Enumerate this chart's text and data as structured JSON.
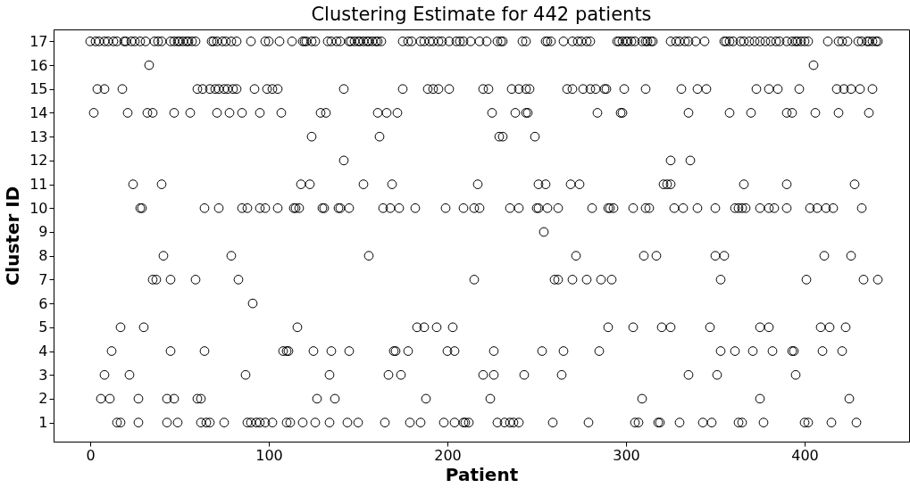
{
  "chart_data": {
    "type": "scatter",
    "title": "Clustering Estimate for 442 patients",
    "xlabel": "Patient",
    "ylabel": "Cluster ID",
    "xlim": [
      -20.5,
      458.5
    ],
    "xticks": [
      0,
      100,
      200,
      300,
      400
    ],
    "ylim": [
      0.2,
      17.5
    ],
    "yticks": [
      1,
      2,
      3,
      4,
      5,
      6,
      7,
      8,
      9,
      10,
      11,
      12,
      13,
      14,
      15,
      16,
      17
    ],
    "grid": false,
    "legend": false,
    "marker": "circle",
    "series": [
      {
        "color": "#000000",
        "x": [
          0,
          3,
          5,
          8,
          10,
          13,
          15,
          19,
          20,
          23,
          25,
          28,
          31,
          36,
          38,
          40,
          45,
          47,
          49,
          50,
          52,
          54,
          55,
          57,
          59,
          68,
          69,
          71,
          74,
          76,
          79,
          82,
          90,
          98,
          100,
          106,
          113,
          119,
          120,
          121,
          124,
          126,
          133,
          135,
          138,
          140,
          145,
          146,
          148,
          150,
          151,
          153,
          155,
          156,
          158,
          160,
          161,
          163,
          175,
          178,
          180,
          185,
          187,
          190,
          192,
          195,
          197,
          201,
          205,
          207,
          209,
          213,
          218,
          222,
          228,
          230,
          231,
          242,
          244,
          255,
          256,
          258,
          265,
          270,
          273,
          275,
          278,
          280,
          295,
          296,
          298,
          300,
          301,
          303,
          305,
          309,
          311,
          312,
          314,
          315,
          325,
          328,
          330,
          333,
          335,
          339,
          344,
          355,
          356,
          358,
          360,
          364,
          366,
          369,
          372,
          375,
          378,
          381,
          384,
          386,
          390,
          393,
          395,
          396,
          398,
          400,
          402,
          413,
          419,
          421,
          424,
          430,
          432,
          435,
          436,
          438,
          440,
          441,
          33,
          405,
          4,
          8,
          18,
          60,
          63,
          67,
          70,
          72,
          75,
          77,
          80,
          82,
          92,
          99,
          102,
          105,
          142,
          175,
          189,
          192,
          195,
          201,
          220,
          223,
          236,
          240,
          244,
          246,
          267,
          270,
          276,
          280,
          283,
          288,
          289,
          299,
          311,
          331,
          340,
          345,
          373,
          380,
          385,
          397,
          418,
          422,
          426,
          431,
          438,
          2,
          21,
          32,
          35,
          47,
          56,
          71,
          78,
          85,
          95,
          107,
          129,
          132,
          161,
          166,
          172,
          225,
          238,
          244,
          245,
          284,
          297,
          298,
          335,
          358,
          370,
          390,
          393,
          406,
          419,
          436,
          124,
          162,
          229,
          231,
          249,
          142,
          325,
          336,
          24,
          40,
          118,
          123,
          153,
          169,
          217,
          251,
          255,
          269,
          274,
          321,
          323,
          325,
          366,
          390,
          428,
          28,
          29,
          64,
          72,
          85,
          88,
          95,
          98,
          105,
          114,
          115,
          117,
          130,
          131,
          139,
          140,
          145,
          164,
          168,
          173,
          182,
          199,
          209,
          215,
          218,
          235,
          240,
          250,
          251,
          256,
          262,
          281,
          290,
          291,
          293,
          304,
          311,
          313,
          327,
          332,
          340,
          350,
          361,
          363,
          365,
          367,
          375,
          380,
          383,
          390,
          403,
          407,
          412,
          416,
          432,
          254,
          41,
          79,
          156,
          272,
          310,
          317,
          350,
          355,
          411,
          426,
          35,
          37,
          45,
          59,
          83,
          215,
          260,
          262,
          270,
          278,
          286,
          292,
          353,
          401,
          433,
          441,
          91,
          17,
          30,
          116,
          183,
          187,
          194,
          203,
          290,
          304,
          320,
          325,
          347,
          375,
          380,
          409,
          414,
          423,
          12,
          45,
          64,
          108,
          110,
          111,
          125,
          135,
          145,
          170,
          171,
          178,
          200,
          204,
          226,
          253,
          265,
          285,
          353,
          361,
          371,
          382,
          393,
          394,
          410,
          421,
          8,
          22,
          87,
          134,
          167,
          174,
          220,
          226,
          243,
          264,
          335,
          351,
          395,
          6,
          11,
          27,
          43,
          47,
          60,
          62,
          127,
          137,
          188,
          224,
          309,
          375,
          425,
          15,
          17,
          27,
          43,
          49,
          62,
          65,
          67,
          75,
          88,
          90,
          93,
          95,
          98,
          102,
          110,
          112,
          119,
          126,
          134,
          144,
          150,
          165,
          179,
          185,
          198,
          204,
          209,
          210,
          212,
          228,
          232,
          235,
          237,
          240,
          259,
          279,
          305,
          307,
          318,
          319,
          330,
          343,
          348,
          363,
          365,
          377,
          400,
          402,
          415,
          429
        ],
        "values": [
          17,
          17,
          17,
          17,
          17,
          17,
          17,
          17,
          17,
          17,
          17,
          17,
          17,
          17,
          17,
          17,
          17,
          17,
          17,
          17,
          17,
          17,
          17,
          17,
          17,
          17,
          17,
          17,
          17,
          17,
          17,
          17,
          17,
          17,
          17,
          17,
          17,
          17,
          17,
          17,
          17,
          17,
          17,
          17,
          17,
          17,
          17,
          17,
          17,
          17,
          17,
          17,
          17,
          17,
          17,
          17,
          17,
          17,
          17,
          17,
          17,
          17,
          17,
          17,
          17,
          17,
          17,
          17,
          17,
          17,
          17,
          17,
          17,
          17,
          17,
          17,
          17,
          17,
          17,
          17,
          17,
          17,
          17,
          17,
          17,
          17,
          17,
          17,
          17,
          17,
          17,
          17,
          17,
          17,
          17,
          17,
          17,
          17,
          17,
          17,
          17,
          17,
          17,
          17,
          17,
          17,
          17,
          17,
          17,
          17,
          17,
          17,
          17,
          17,
          17,
          17,
          17,
          17,
          17,
          17,
          17,
          17,
          17,
          17,
          17,
          17,
          17,
          17,
          17,
          17,
          17,
          17,
          17,
          17,
          17,
          17,
          17,
          17,
          16,
          16,
          15,
          15,
          15,
          15,
          15,
          15,
          15,
          15,
          15,
          15,
          15,
          15,
          15,
          15,
          15,
          15,
          15,
          15,
          15,
          15,
          15,
          15,
          15,
          15,
          15,
          15,
          15,
          15,
          15,
          15,
          15,
          15,
          15,
          15,
          15,
          15,
          15,
          15,
          15,
          15,
          15,
          15,
          15,
          15,
          15,
          15,
          15,
          15,
          15,
          14,
          14,
          14,
          14,
          14,
          14,
          14,
          14,
          14,
          14,
          14,
          14,
          14,
          14,
          14,
          14,
          14,
          14,
          14,
          14,
          14,
          14,
          14,
          14,
          14,
          14,
          14,
          14,
          14,
          14,
          14,
          13,
          13,
          13,
          13,
          13,
          12,
          12,
          12,
          11,
          11,
          11,
          11,
          11,
          11,
          11,
          11,
          11,
          11,
          11,
          11,
          11,
          11,
          11,
          11,
          11,
          10,
          10,
          10,
          10,
          10,
          10,
          10,
          10,
          10,
          10,
          10,
          10,
          10,
          10,
          10,
          10,
          10,
          10,
          10,
          10,
          10,
          10,
          10,
          10,
          10,
          10,
          10,
          10,
          10,
          10,
          10,
          10,
          10,
          10,
          10,
          10,
          10,
          10,
          10,
          10,
          10,
          10,
          10,
          10,
          10,
          10,
          10,
          10,
          10,
          10,
          10,
          10,
          10,
          10,
          10,
          9,
          8,
          8,
          8,
          8,
          8,
          8,
          8,
          8,
          8,
          8,
          7,
          7,
          7,
          7,
          7,
          7,
          7,
          7,
          7,
          7,
          7,
          7,
          7,
          7,
          7,
          7,
          6,
          5,
          5,
          5,
          5,
          5,
          5,
          5,
          5,
          5,
          5,
          5,
          5,
          5,
          5,
          5,
          5,
          5,
          4,
          4,
          4,
          4,
          4,
          4,
          4,
          4,
          4,
          4,
          4,
          4,
          4,
          4,
          4,
          4,
          4,
          4,
          4,
          4,
          4,
          4,
          4,
          4,
          4,
          4,
          3,
          3,
          3,
          3,
          3,
          3,
          3,
          3,
          3,
          3,
          3,
          3,
          3,
          2,
          2,
          2,
          2,
          2,
          2,
          2,
          2,
          2,
          2,
          2,
          2,
          2,
          2,
          1,
          1,
          1,
          1,
          1,
          1,
          1,
          1,
          1,
          1,
          1,
          1,
          1,
          1,
          1,
          1,
          1,
          1,
          1,
          1,
          1,
          1,
          1,
          1,
          1,
          1,
          1,
          1,
          1,
          1,
          1,
          1,
          1,
          1,
          1,
          1,
          1,
          1,
          1,
          1,
          1,
          1,
          1,
          1,
          1,
          1,
          1,
          1,
          1,
          1,
          1
        ]
      }
    ]
  }
}
